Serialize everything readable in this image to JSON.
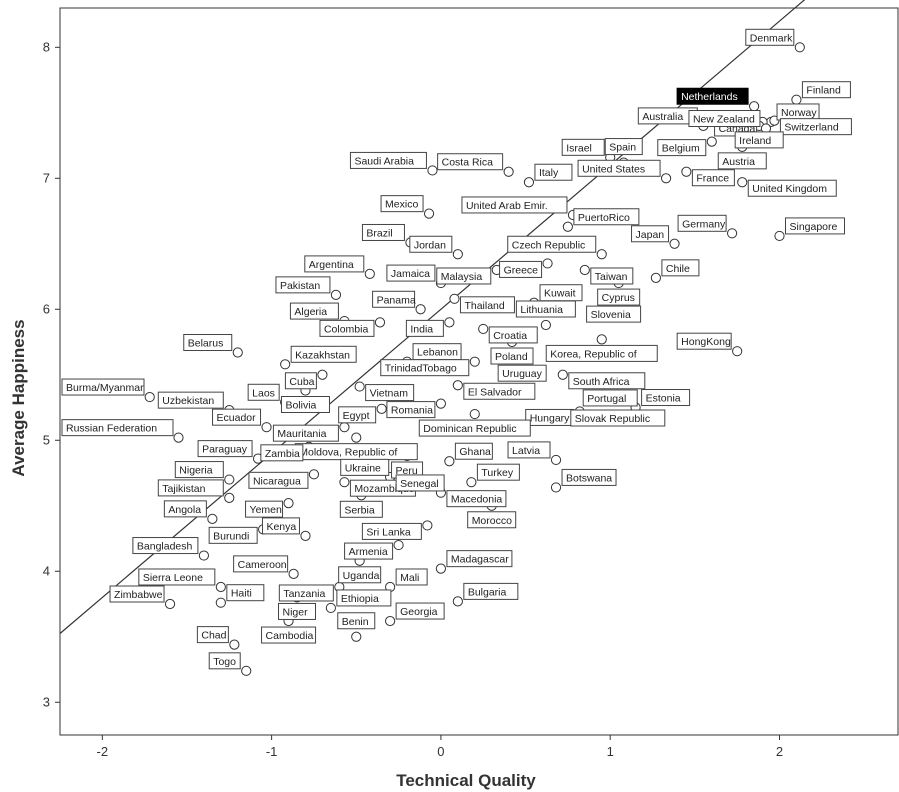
{
  "chart_data": {
    "type": "scatter",
    "xlabel": "Technical Quality",
    "ylabel": "Average Happiness",
    "xlim": [
      -2.25,
      2.7
    ],
    "ylim": [
      2.75,
      8.3
    ],
    "xticks": [
      "-2",
      "-1",
      "0",
      "1",
      "2"
    ],
    "yticks": [
      "3",
      "4",
      "5",
      "6",
      "7",
      "8"
    ],
    "highlight": "Netherlands",
    "fit_line": {
      "intercept": 6.0,
      "slope": 1.1
    },
    "points": [
      {
        "label": "Denmark",
        "x": 2.12,
        "y": 8.0
      },
      {
        "label": "Netherlands",
        "x": 1.85,
        "y": 7.55
      },
      {
        "label": "Norway",
        "x": 1.95,
        "y": 7.43
      },
      {
        "label": "Finland",
        "x": 2.1,
        "y": 7.6
      },
      {
        "label": "Australia",
        "x": 1.55,
        "y": 7.4
      },
      {
        "label": "Canada",
        "x": 1.9,
        "y": 7.43
      },
      {
        "label": "Switzerland",
        "x": 1.97,
        "y": 7.44
      },
      {
        "label": "Israel",
        "x": 1.0,
        "y": 7.16
      },
      {
        "label": "Belgium",
        "x": 1.6,
        "y": 7.28
      },
      {
        "label": "Ireland",
        "x": 1.88,
        "y": 7.4
      },
      {
        "label": "New Zealand",
        "x": 1.92,
        "y": 7.38
      },
      {
        "label": "Saudi Arabia",
        "x": -0.05,
        "y": 7.06
      },
      {
        "label": "Costa Rica",
        "x": 0.4,
        "y": 7.05
      },
      {
        "label": "Italy",
        "x": 0.52,
        "y": 6.97
      },
      {
        "label": "Spain",
        "x": 1.08,
        "y": 7.12
      },
      {
        "label": "United States",
        "x": 1.33,
        "y": 7.0
      },
      {
        "label": "Austria",
        "x": 1.78,
        "y": 7.24
      },
      {
        "label": "France",
        "x": 1.45,
        "y": 7.05
      },
      {
        "label": "United Kingdom",
        "x": 1.78,
        "y": 6.97
      },
      {
        "label": "Mexico",
        "x": -0.07,
        "y": 6.73
      },
      {
        "label": "United Arab Emir.",
        "x": 0.78,
        "y": 6.72
      },
      {
        "label": "Germany",
        "x": 1.72,
        "y": 6.58
      },
      {
        "label": "Singapore",
        "x": 2.0,
        "y": 6.56
      },
      {
        "label": "Brazil",
        "x": -0.18,
        "y": 6.51
      },
      {
        "label": "PuertoRico",
        "x": 0.75,
        "y": 6.63
      },
      {
        "label": "Japan",
        "x": 1.38,
        "y": 6.5
      },
      {
        "label": "Czech Republic",
        "x": 0.95,
        "y": 6.42
      },
      {
        "label": "Jordan",
        "x": 0.1,
        "y": 6.42
      },
      {
        "label": "Greece",
        "x": 0.63,
        "y": 6.35
      },
      {
        "label": "Argentina",
        "x": -0.42,
        "y": 6.27
      },
      {
        "label": "Jamaica",
        "x": 0.0,
        "y": 6.2
      },
      {
        "label": "Malaysia",
        "x": 0.33,
        "y": 6.3
      },
      {
        "label": "Taiwan",
        "x": 0.85,
        "y": 6.3
      },
      {
        "label": "Cyprus",
        "x": 1.05,
        "y": 6.2
      },
      {
        "label": "Chile",
        "x": 1.27,
        "y": 6.24
      },
      {
        "label": "Pakistan",
        "x": -0.62,
        "y": 6.11
      },
      {
        "label": "Panama",
        "x": -0.12,
        "y": 6.0
      },
      {
        "label": "Thailand",
        "x": 0.08,
        "y": 6.08
      },
      {
        "label": "Kuwait",
        "x": 0.55,
        "y": 6.05
      },
      {
        "label": "Slovenia",
        "x": 1.02,
        "y": 6.07
      },
      {
        "label": "Algeria",
        "x": -0.57,
        "y": 5.91
      },
      {
        "label": "Colombia",
        "x": -0.36,
        "y": 5.9
      },
      {
        "label": "India",
        "x": 0.05,
        "y": 5.9
      },
      {
        "label": "Croatia",
        "x": 0.25,
        "y": 5.85
      },
      {
        "label": "Lithuania",
        "x": 0.62,
        "y": 5.88
      },
      {
        "label": "HongKong",
        "x": 1.75,
        "y": 5.68
      },
      {
        "label": "Belarus",
        "x": -1.2,
        "y": 5.67
      },
      {
        "label": "Kazakhstan",
        "x": -0.92,
        "y": 5.58
      },
      {
        "label": "Lebanon",
        "x": -0.2,
        "y": 5.6
      },
      {
        "label": "Poland",
        "x": 0.42,
        "y": 5.75
      },
      {
        "label": "Korea, Republic of",
        "x": 0.95,
        "y": 5.77
      },
      {
        "label": "Cuba",
        "x": -0.7,
        "y": 5.5
      },
      {
        "label": "TrinidadTobago",
        "x": 0.2,
        "y": 5.6
      },
      {
        "label": "Bolivia",
        "x": -0.8,
        "y": 5.38
      },
      {
        "label": "Vietnam",
        "x": -0.48,
        "y": 5.41
      },
      {
        "label": "El Salvador",
        "x": 0.1,
        "y": 5.42
      },
      {
        "label": "Uruguay",
        "x": 0.48,
        "y": 5.39
      },
      {
        "label": "South Africa",
        "x": 0.72,
        "y": 5.5
      },
      {
        "label": "Portugal",
        "x": 1.0,
        "y": 5.43
      },
      {
        "label": "Burma/Myanmar",
        "x": -1.72,
        "y": 5.33
      },
      {
        "label": "Uzbekistan",
        "x": -1.25,
        "y": 5.23
      },
      {
        "label": "Laos",
        "x": -0.92,
        "y": 5.29
      },
      {
        "label": "Egypt",
        "x": -0.35,
        "y": 5.24
      },
      {
        "label": "Romania",
        "x": 0.0,
        "y": 5.28
      },
      {
        "label": "Estonia",
        "x": 1.15,
        "y": 5.25
      },
      {
        "label": "Hungary",
        "x": 0.82,
        "y": 5.22
      },
      {
        "label": "Mauritania",
        "x": -0.57,
        "y": 5.1
      },
      {
        "label": "Dominican Republic",
        "x": 0.2,
        "y": 5.2
      },
      {
        "label": "Ecuador",
        "x": -1.03,
        "y": 5.1
      },
      {
        "label": "Slovak Republic",
        "x": 0.72,
        "y": 5.17
      },
      {
        "label": "Russian Federation",
        "x": -1.55,
        "y": 5.02
      },
      {
        "label": "Moldova, Republic of",
        "x": -0.5,
        "y": 5.02
      },
      {
        "label": "Zambia",
        "x": -0.78,
        "y": 4.95
      },
      {
        "label": "Paraguay",
        "x": -1.08,
        "y": 4.86
      },
      {
        "label": "Ukraine",
        "x": -0.45,
        "y": 4.9
      },
      {
        "label": "Peru",
        "x": -0.2,
        "y": 4.88
      },
      {
        "label": "Ghana",
        "x": 0.05,
        "y": 4.84
      },
      {
        "label": "Latvia",
        "x": 0.68,
        "y": 4.85
      },
      {
        "label": "Nigeria",
        "x": -1.25,
        "y": 4.7
      },
      {
        "label": "Nicaragua",
        "x": -0.75,
        "y": 4.74
      },
      {
        "label": "Mozambique",
        "x": -0.57,
        "y": 4.68
      },
      {
        "label": "Senegal",
        "x": -0.3,
        "y": 4.72
      },
      {
        "label": "Turkey",
        "x": 0.18,
        "y": 4.68
      },
      {
        "label": "Tajikistan",
        "x": -1.25,
        "y": 4.56
      },
      {
        "label": "Yemen",
        "x": -0.9,
        "y": 4.52
      },
      {
        "label": "Serbia",
        "x": -0.47,
        "y": 4.58
      },
      {
        "label": "Macedonia",
        "x": 0.0,
        "y": 4.6
      },
      {
        "label": "Morocco",
        "x": 0.3,
        "y": 4.5
      },
      {
        "label": "Botswana",
        "x": 0.68,
        "y": 4.64
      },
      {
        "label": "Angola",
        "x": -1.35,
        "y": 4.4
      },
      {
        "label": "Burundi",
        "x": -1.05,
        "y": 4.32
      },
      {
        "label": "Kenya",
        "x": -0.8,
        "y": 4.27
      },
      {
        "label": "Sri Lanka",
        "x": -0.08,
        "y": 4.35
      },
      {
        "label": "Armenia",
        "x": -0.25,
        "y": 4.2
      },
      {
        "label": "Bangladesh",
        "x": -1.4,
        "y": 4.12
      },
      {
        "label": "Uganda",
        "x": -0.48,
        "y": 4.08
      },
      {
        "label": "Cameroon",
        "x": -0.87,
        "y": 3.98
      },
      {
        "label": "Madagascar",
        "x": 0.0,
        "y": 4.02
      },
      {
        "label": "Tanzania",
        "x": -0.6,
        "y": 3.88
      },
      {
        "label": "Sierra Leone",
        "x": -1.3,
        "y": 3.88
      },
      {
        "label": "Mali",
        "x": -0.3,
        "y": 3.88
      },
      {
        "label": "Bulgaria",
        "x": 0.1,
        "y": 3.77
      },
      {
        "label": "Niger",
        "x": -0.85,
        "y": 3.8
      },
      {
        "label": "Zimbabwe",
        "x": -1.6,
        "y": 3.75
      },
      {
        "label": "Haiti",
        "x": -1.3,
        "y": 3.76
      },
      {
        "label": "Ethiopia",
        "x": -0.65,
        "y": 3.72
      },
      {
        "label": "Chad",
        "x": -1.22,
        "y": 3.44
      },
      {
        "label": "Cambodia",
        "x": -0.9,
        "y": 3.62
      },
      {
        "label": "Georgia",
        "x": -0.3,
        "y": 3.62
      },
      {
        "label": "Togo",
        "x": -1.15,
        "y": 3.24
      },
      {
        "label": "Benin",
        "x": -0.5,
        "y": 3.5
      }
    ]
  }
}
